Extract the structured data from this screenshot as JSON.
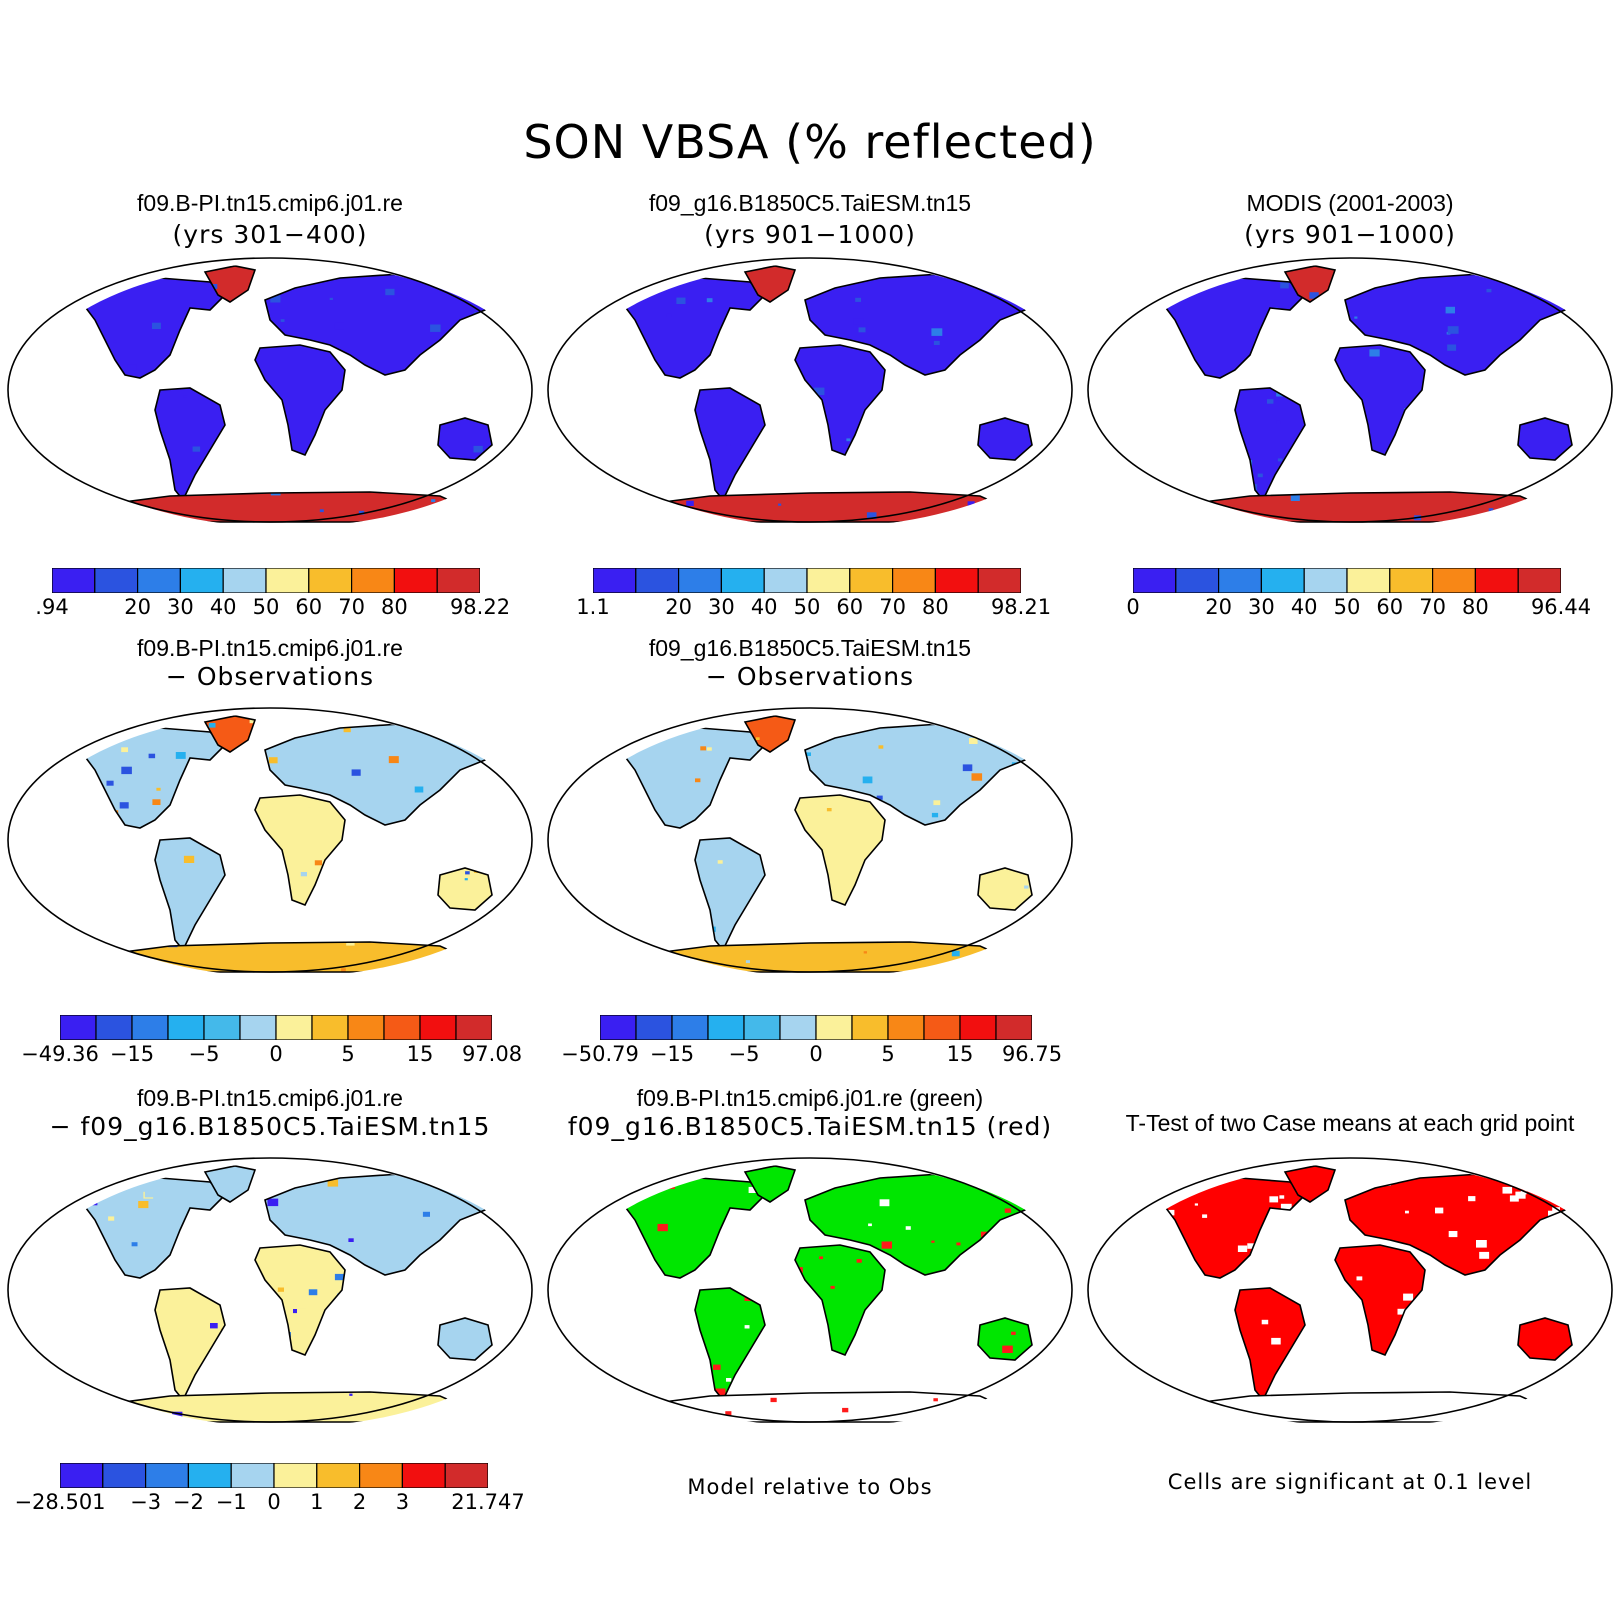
{
  "title": "SON VBSA (% reflected)",
  "palettes": {
    "seq": [
      "#3a1ff2",
      "#2b53e0",
      "#2d7ee8",
      "#25b0ef",
      "#a6d4ef",
      "#fbf19a",
      "#f8bd2c",
      "#f88716",
      "#f20f0f",
      "#d22b2b"
    ],
    "diff": [
      "#3a1ff2",
      "#2b53e0",
      "#2d7ee8",
      "#25b0ef",
      "#44b9ea",
      "#a6d4ef",
      "#fbf19a",
      "#f8bd2c",
      "#f88716",
      "#f55a16",
      "#f20f0f",
      "#d22b2b"
    ],
    "mdiff": [
      "#3a1ff2",
      "#2b53e0",
      "#2d7ee8",
      "#25b0ef",
      "#a6d4ef",
      "#fbf19a",
      "#f8bd2c",
      "#f88716",
      "#f20f0f",
      "#d22b2b"
    ]
  },
  "panels": [
    {
      "line1": "f09.B-PI.tn15.cmip6.j01.re",
      "line2": "(yrs 301−400)",
      "bold": false,
      "style": "abs",
      "colorbar": {
        "labels": [
          ".94",
          "20",
          "30",
          "40",
          "50",
          "60",
          "70",
          "80",
          "98.22"
        ]
      }
    },
    {
      "line1": "f09_g16.B1850C5.TaiESM.tn15",
      "line2": "(yrs 901−1000)",
      "bold": false,
      "style": "abs",
      "colorbar": {
        "labels": [
          "1.1",
          "20",
          "30",
          "40",
          "50",
          "60",
          "70",
          "80",
          "98.21"
        ]
      }
    },
    {
      "line1": "MODIS (2001-2003)",
      "line2": "(yrs 901−1000)",
      "bold": false,
      "style": "abs",
      "colorbar": {
        "labels": [
          "0",
          "20",
          "30",
          "40",
          "50",
          "60",
          "70",
          "80",
          "96.44"
        ]
      }
    },
    {
      "line1": "f09.B-PI.tn15.cmip6.j01.re",
      "line2": "− Observations",
      "bold": false,
      "style": "diff",
      "colorbar": {
        "labels": [
          "−49.36",
          "−15",
          "−5",
          "0",
          "5",
          "15",
          "97.08"
        ]
      }
    },
    {
      "line1": "f09_g16.B1850C5.TaiESM.tn15",
      "line2": "− Observations",
      "bold": false,
      "style": "diff",
      "colorbar": {
        "labels": [
          "−50.79",
          "−15",
          "−5",
          "0",
          "5",
          "15",
          "96.75"
        ]
      }
    },
    {
      "line1": "f09.B-PI.tn15.cmip6.j01.re",
      "line2": "− f09_g16.B1850C5.TaiESM.tn15",
      "bold": false,
      "style": "mdiff",
      "colorbar": {
        "labels": [
          "−28.501",
          "−3",
          "−2",
          "−1",
          "0",
          "1",
          "2",
          "3",
          "21.747"
        ]
      }
    },
    {
      "line1": "f09.B-PI.tn15.cmip6.j01.re (green)",
      "line2": "f09_g16.B1850C5.TaiESM.tn15 (red)",
      "bold": false,
      "style": "rg",
      "note": "Model relative to Obs"
    },
    {
      "line1": "T-Test of two Case means at each grid point",
      "line2": "",
      "bold": false,
      "style": "ttest",
      "note": "Cells are significant at 0.1 level"
    }
  ]
}
